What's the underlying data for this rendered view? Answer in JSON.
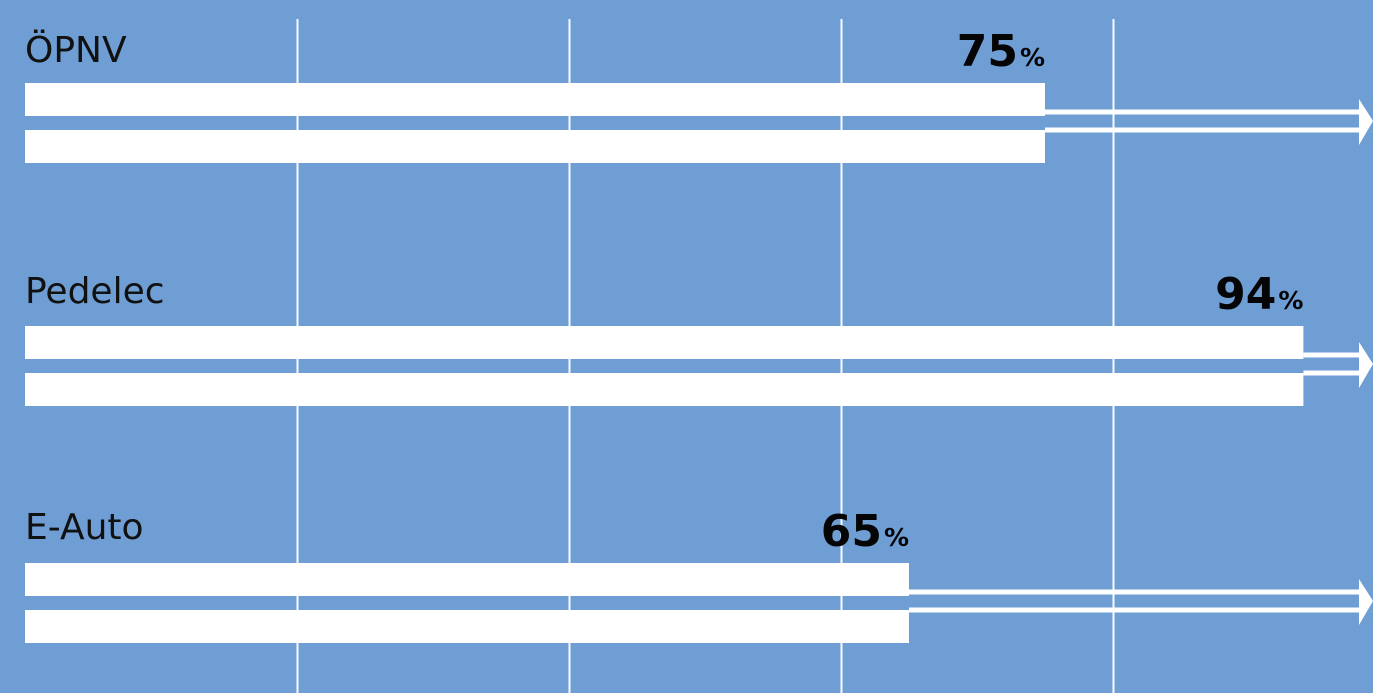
{
  "colors": {
    "background": "#6f9ed4",
    "bar": "#ffffff",
    "gridline": "#ffffff",
    "text": "#111111",
    "value_text": "#050505"
  },
  "chart_data": {
    "type": "bar",
    "orientation": "horizontal",
    "categories": [
      "ÖPNV",
      "Pedelec",
      "E-Auto"
    ],
    "values": [
      75,
      94,
      65
    ],
    "value_unit": "%",
    "xlim": [
      0,
      100
    ],
    "grid": true,
    "legend": "none"
  }
}
